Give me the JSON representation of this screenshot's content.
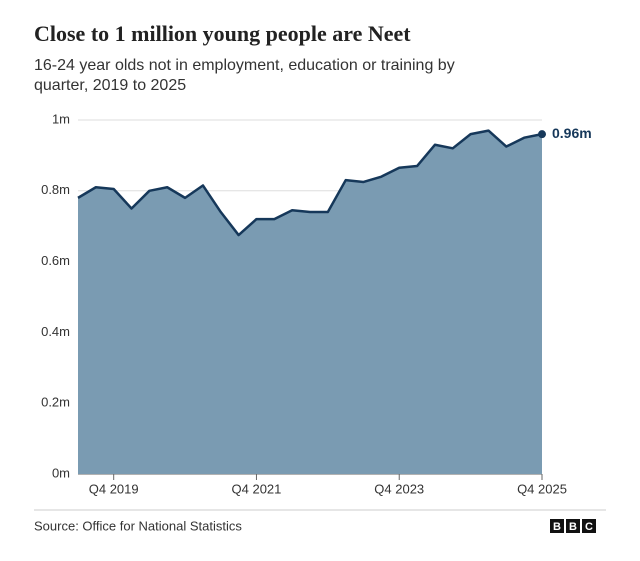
{
  "chart_data": {
    "type": "area",
    "title": "Close to 1 million young people are Neet",
    "subtitle": "16-24 year olds not in employment, education or training by quarter, 2019 to 2025",
    "categories": [
      null,
      null,
      "Q4 2019",
      null,
      null,
      null,
      null,
      null,
      null,
      null,
      "Q4 2021",
      null,
      null,
      null,
      null,
      null,
      null,
      null,
      "Q4 2023",
      null,
      null,
      null,
      null,
      null,
      null,
      null,
      "Q4 2025"
    ],
    "values": [
      0.78,
      0.81,
      0.805,
      0.75,
      0.8,
      0.81,
      0.78,
      0.815,
      0.74,
      0.675,
      0.72,
      0.72,
      0.745,
      0.74,
      0.74,
      0.83,
      0.825,
      0.84,
      0.865,
      0.87,
      0.93,
      0.92,
      0.96,
      0.97,
      0.925,
      0.95,
      0.96
    ],
    "value_labels": [
      null,
      null,
      null,
      null,
      null,
      null,
      null,
      null,
      null,
      null,
      null,
      null,
      null,
      null,
      null,
      null,
      null,
      null,
      null,
      null,
      null,
      null,
      null,
      null,
      null,
      null,
      "0.96m"
    ],
    "color": "#7a9bb2",
    "line_color": "#16385a",
    "ylim": [
      0,
      1
    ],
    "yticks": [
      {
        "value": 0,
        "label": "0m"
      },
      {
        "value": 0.2,
        "label": "0.2m"
      },
      {
        "value": 0.4,
        "label": "0.4m"
      },
      {
        "value": 0.6,
        "label": "0.6m"
      },
      {
        "value": 0.8,
        "label": "0.8m"
      },
      {
        "value": 1,
        "label": "1m"
      }
    ],
    "grid": true,
    "source": "Source: Office for National Statistics",
    "logo": "BBC"
  }
}
